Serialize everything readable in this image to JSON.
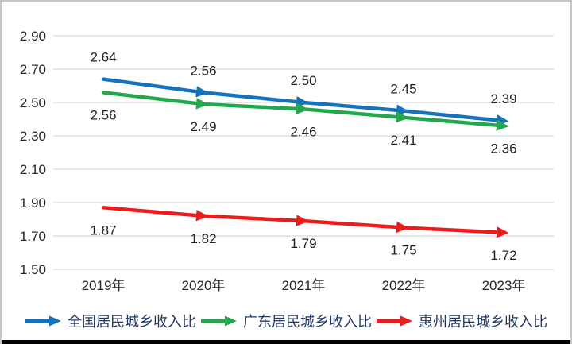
{
  "chart_data": {
    "type": "line",
    "title": "",
    "categories": [
      "2019年",
      "2020年",
      "2021年",
      "2022年",
      "2023年"
    ],
    "series": [
      {
        "name": "全国居民城乡收入比",
        "color": "#1573BE",
        "values": [
          2.64,
          2.56,
          2.5,
          2.45,
          2.39
        ],
        "label_position": "above"
      },
      {
        "name": "广东居民城乡收入比",
        "color": "#22A84C",
        "values": [
          2.56,
          2.49,
          2.46,
          2.41,
          2.36
        ],
        "label_position": "below"
      },
      {
        "name": "惠州居民城乡收入比",
        "color": "#EC1C1C",
        "values": [
          1.87,
          1.82,
          1.79,
          1.75,
          1.72
        ],
        "label_position": "below"
      }
    ],
    "ylim": [
      1.5,
      2.9
    ],
    "y_ticks": [
      2.9,
      2.7,
      2.5,
      2.3,
      2.1,
      1.9,
      1.7,
      1.5
    ],
    "y_tick_step": 0.2,
    "grid": "horizontal",
    "legend_position": "bottom",
    "marker": "arrow-right",
    "colors": {
      "gridline": "#D8D8D8",
      "axis_text": "#23262D",
      "data_label": "#1E2127",
      "legend_text": "#1F3864"
    }
  }
}
